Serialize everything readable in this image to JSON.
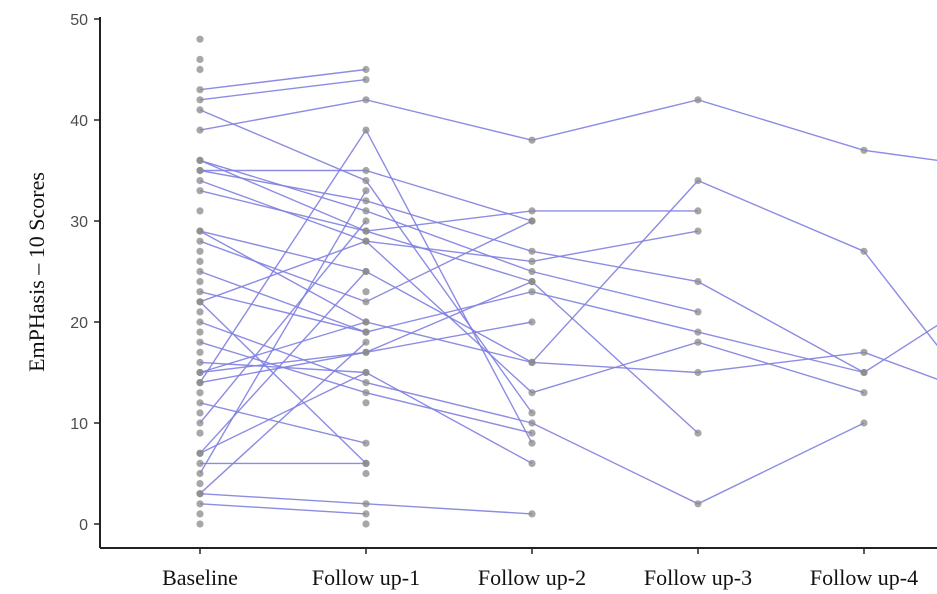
{
  "chart_data": {
    "type": "line",
    "title": "",
    "xlabel": "",
    "ylabel": "EmPHasis – 10 Scores",
    "categories": [
      "Baseline",
      "Follow up-1",
      "Follow up-2",
      "Follow up-3",
      "Follow up-4"
    ],
    "ylim": [
      0,
      50
    ],
    "yticks": [
      0,
      10,
      20,
      30,
      40,
      50
    ],
    "grid": false,
    "legend": "none",
    "colors": {
      "line": "#8080e0",
      "point": "#8a8a8a",
      "axis": "#222222"
    },
    "series": [
      {
        "values": [
          43,
          45,
          null,
          null,
          null
        ]
      },
      {
        "values": [
          42,
          44,
          null,
          null,
          null
        ]
      },
      {
        "values": [
          41,
          34,
          11,
          null,
          null
        ]
      },
      {
        "values": [
          39,
          42,
          38,
          42,
          37
        ]
      },
      {
        "values": [
          36,
          29,
          24,
          9,
          null
        ]
      },
      {
        "values": [
          36,
          31,
          25,
          21,
          null
        ]
      },
      {
        "values": [
          35,
          35,
          30,
          null,
          null
        ]
      },
      {
        "values": [
          35,
          32,
          27,
          24,
          15
        ]
      },
      {
        "values": [
          34,
          28,
          26,
          29,
          null
        ]
      },
      {
        "values": [
          33,
          29,
          31,
          31,
          null
        ]
      },
      {
        "values": [
          29,
          25,
          16,
          15,
          17
        ]
      },
      {
        "values": [
          29,
          20,
          16,
          34,
          27
        ]
      },
      {
        "values": [
          28,
          22,
          30,
          null,
          null
        ]
      },
      {
        "values": [
          25,
          19,
          null,
          null,
          null
        ]
      },
      {
        "values": [
          23,
          19,
          23,
          19,
          15
        ]
      },
      {
        "values": [
          22,
          28,
          13,
          18,
          13
        ]
      },
      {
        "values": [
          22,
          6,
          null,
          null,
          null
        ]
      },
      {
        "values": [
          20,
          14,
          10,
          2,
          10
        ]
      },
      {
        "values": [
          18,
          13,
          9,
          null,
          null
        ]
      },
      {
        "values": [
          16,
          15,
          6,
          null,
          null
        ]
      },
      {
        "values": [
          15,
          20,
          null,
          null,
          null
        ]
      },
      {
        "values": [
          15,
          17,
          24,
          null,
          null
        ]
      },
      {
        "values": [
          14,
          39,
          8,
          null,
          null
        ]
      },
      {
        "values": [
          14,
          17,
          20,
          null,
          null
        ]
      },
      {
        "values": [
          12,
          8,
          null,
          null,
          null
        ]
      },
      {
        "values": [
          10,
          30,
          null,
          null,
          null
        ]
      },
      {
        "values": [
          7,
          15,
          null,
          null,
          null
        ]
      },
      {
        "values": [
          7,
          25,
          null,
          null,
          null
        ]
      },
      {
        "values": [
          6,
          6,
          null,
          null,
          null
        ]
      },
      {
        "values": [
          5,
          33,
          null,
          null,
          null
        ]
      },
      {
        "values": [
          3,
          18,
          null,
          null,
          null
        ]
      },
      {
        "values": [
          3,
          2,
          1,
          null,
          null
        ]
      },
      {
        "values": [
          2,
          1,
          null,
          null,
          null
        ]
      }
    ],
    "extra_points": [
      {
        "x": 0,
        "y": 48
      },
      {
        "x": 0,
        "y": 46
      },
      {
        "x": 0,
        "y": 45
      },
      {
        "x": 0,
        "y": 31
      },
      {
        "x": 0,
        "y": 27
      },
      {
        "x": 0,
        "y": 26
      },
      {
        "x": 0,
        "y": 24
      },
      {
        "x": 0,
        "y": 21
      },
      {
        "x": 0,
        "y": 19
      },
      {
        "x": 0,
        "y": 17
      },
      {
        "x": 0,
        "y": 13
      },
      {
        "x": 0,
        "y": 11
      },
      {
        "x": 0,
        "y": 9
      },
      {
        "x": 0,
        "y": 4
      },
      {
        "x": 0,
        "y": 1
      },
      {
        "x": 0,
        "y": 0
      },
      {
        "x": 1,
        "y": 23
      },
      {
        "x": 1,
        "y": 12
      },
      {
        "x": 1,
        "y": 5
      },
      {
        "x": 1,
        "y": 0
      }
    ]
  }
}
